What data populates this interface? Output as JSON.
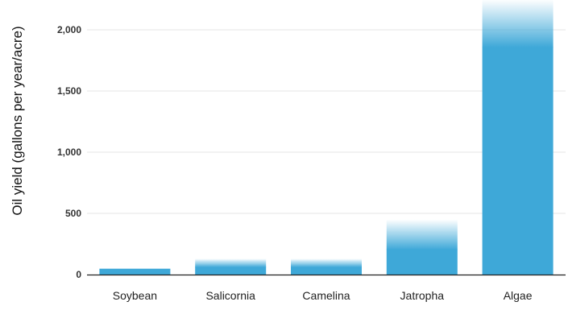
{
  "chart_data": {
    "type": "bar",
    "title": "",
    "xlabel": "",
    "ylabel": "Oil yield (gallons per year/acre)",
    "categories": [
      "Soybean",
      "Salicornia",
      "Camelina",
      "Jatropha",
      "Algae"
    ],
    "values": [
      48,
      130,
      130,
      450,
      2250
    ],
    "yticks": [
      0,
      500,
      1000,
      1500,
      2000
    ],
    "ytick_labels": [
      "0",
      "500",
      "1,000",
      "1,500",
      "2,000"
    ],
    "ylim": [
      0,
      2250
    ],
    "grid": true,
    "legend": "none",
    "bar_color": "#3ea8d8",
    "gridline_color": "#e6e6e6",
    "axis_color": "#222222",
    "faded_top": [
      false,
      true,
      true,
      true,
      true
    ]
  }
}
